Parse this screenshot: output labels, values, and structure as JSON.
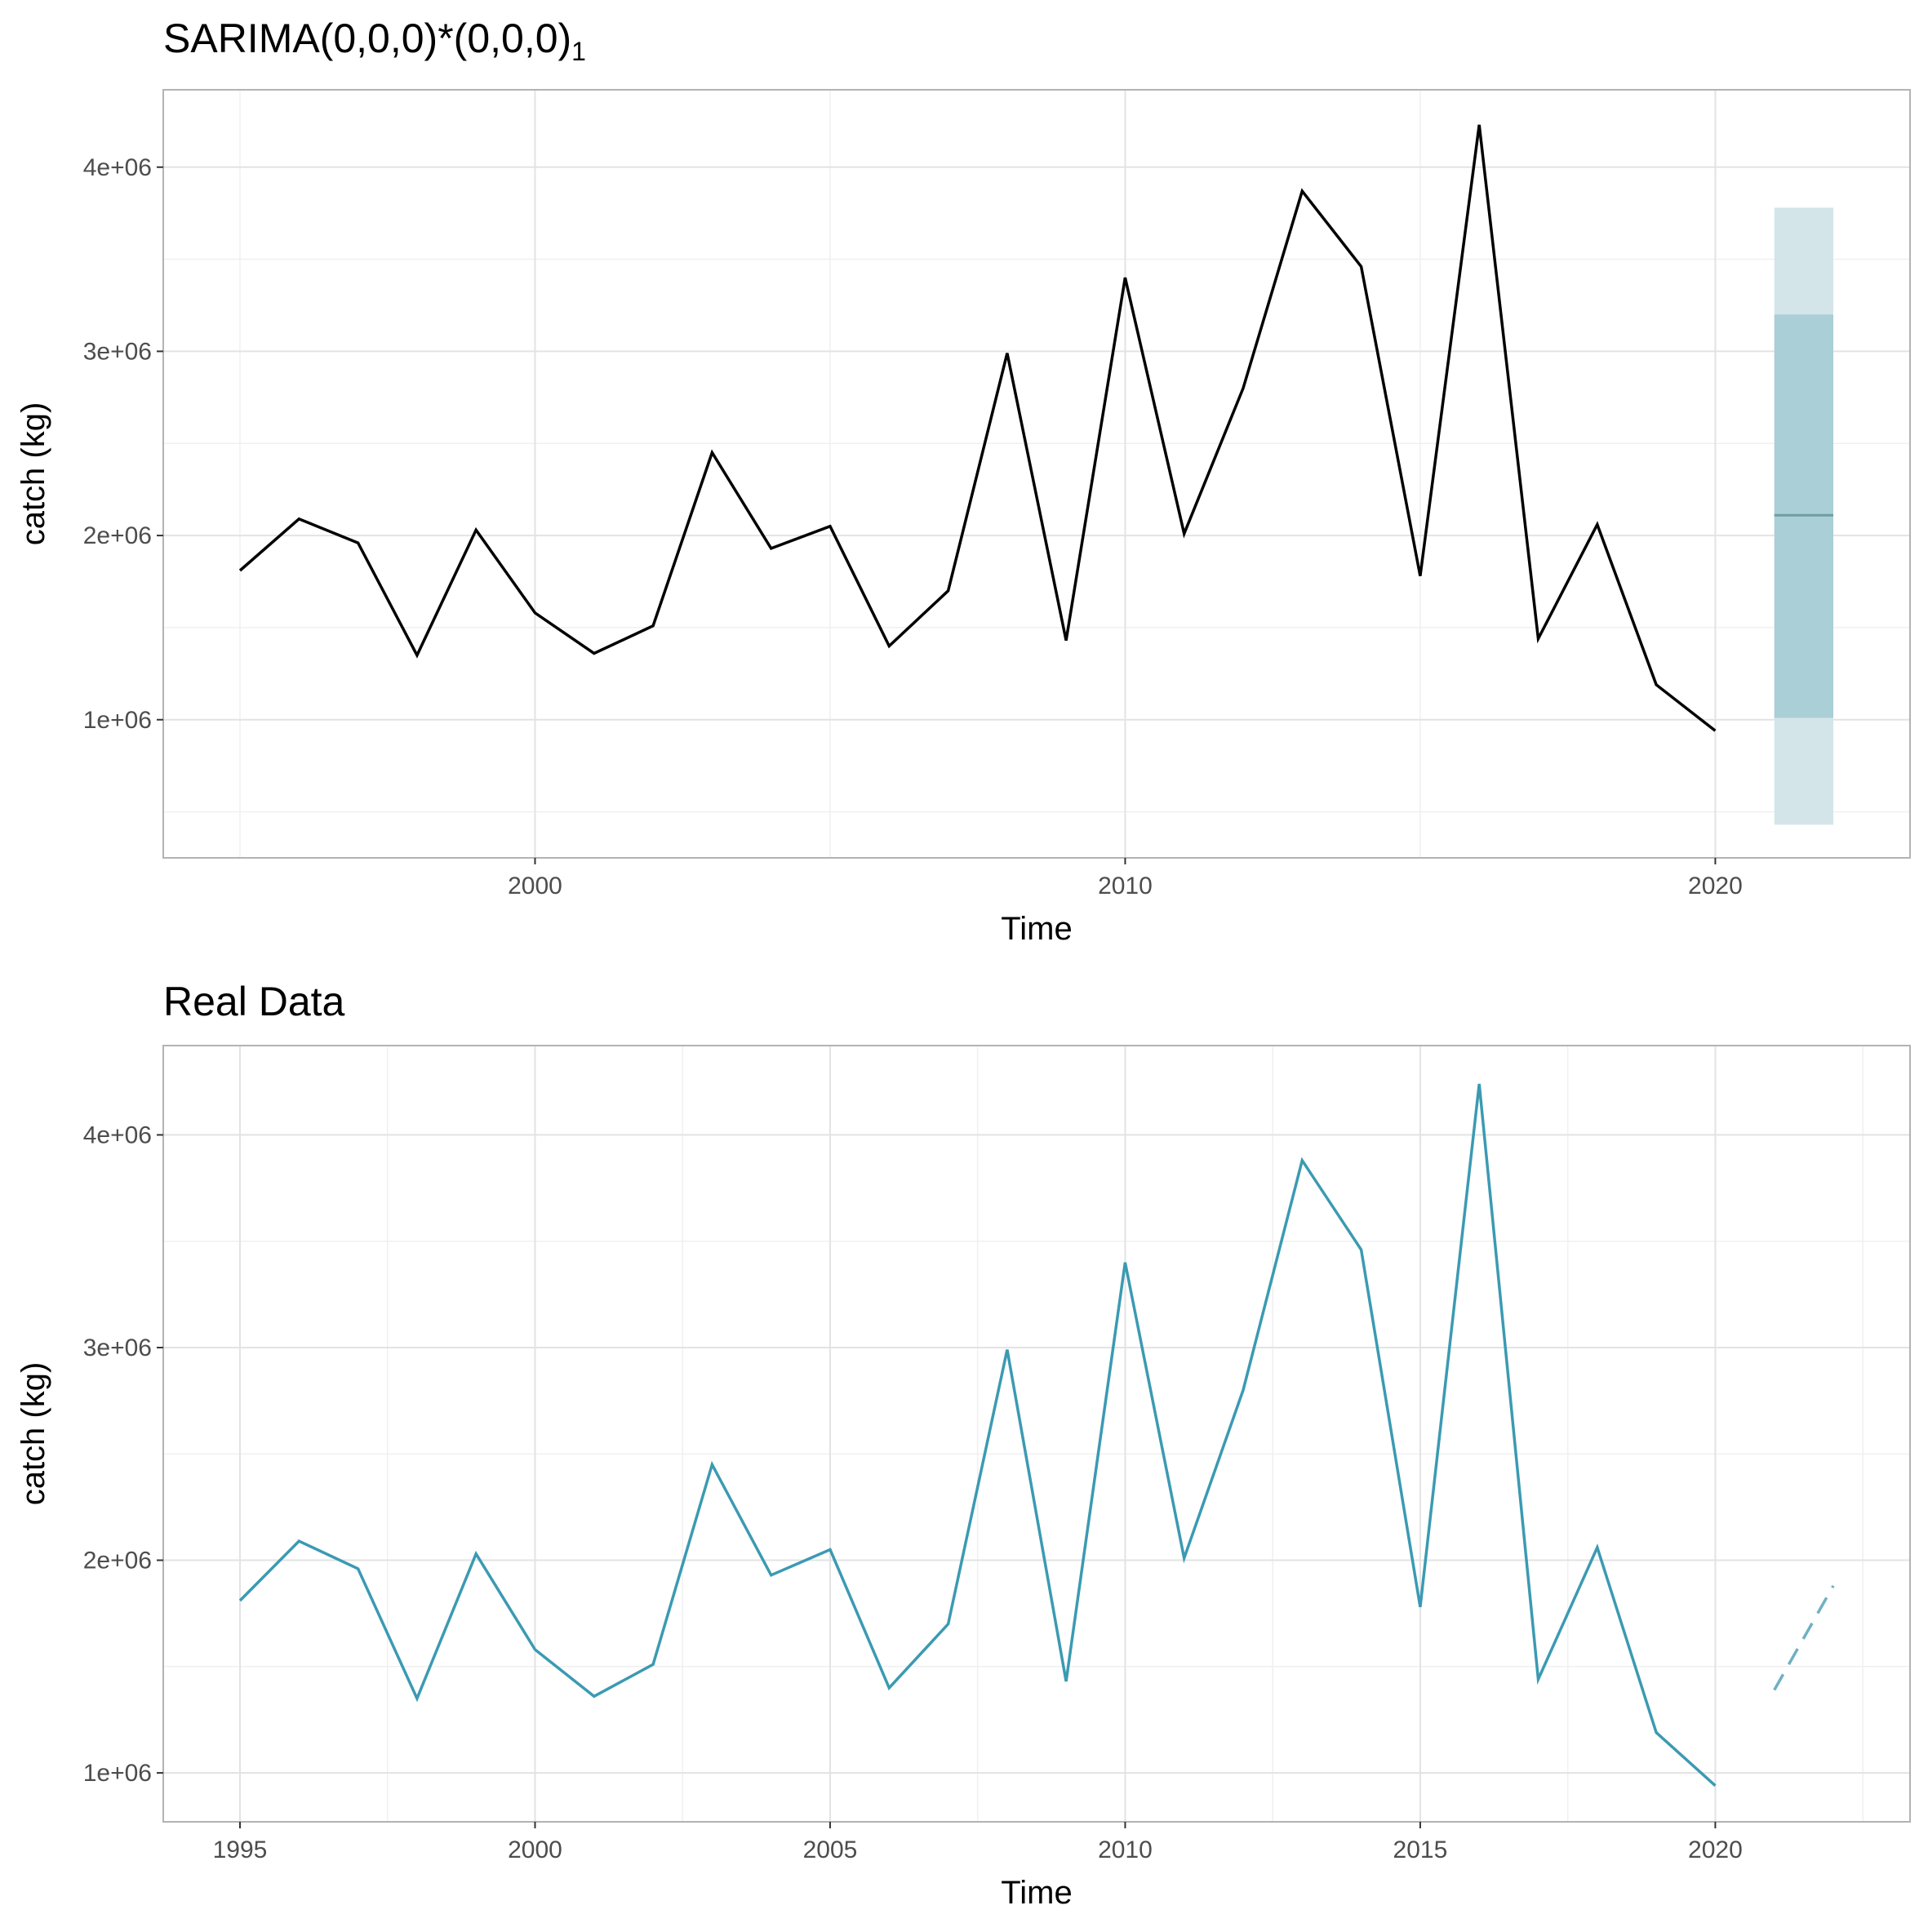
{
  "chart_data": [
    {
      "type": "line",
      "title": "SARIMA(0,0,0)*(0,0,0)",
      "title_subscript": "1",
      "xlabel": "Time",
      "ylabel": "catch (kg)",
      "xlim": [
        1993.7,
        2023.3
      ],
      "ylim": [
        250000,
        4420000
      ],
      "x_ticks": [
        2000,
        2010,
        2020
      ],
      "y_ticks": [
        1000000,
        2000000,
        3000000,
        4000000
      ],
      "y_tick_labels": [
        "1e+06",
        "2e+06",
        "3e+06",
        "4e+06"
      ],
      "grid": true,
      "series": [
        {
          "color": "#000000",
          "x": [
            1995,
            1996,
            1997,
            1998,
            1999,
            2000,
            2001,
            2002,
            2003,
            2004,
            2005,
            2006,
            2007,
            2008,
            2009,
            2010,
            2011,
            2012,
            2013,
            2014,
            2015,
            2016,
            2017,
            2018,
            2019,
            2020
          ],
          "y": [
            1810000,
            2090000,
            1960000,
            1350000,
            2030000,
            1580000,
            1360000,
            1510000,
            2450000,
            1930000,
            2050000,
            1400000,
            1700000,
            2990000,
            1430000,
            3400000,
            2010000,
            2800000,
            3870000,
            3460000,
            1780000,
            4230000,
            1440000,
            2060000,
            1190000,
            940000
          ]
        }
      ],
      "forecast": {
        "x_start": 2021,
        "x_end": 2022,
        "mean": 2110000,
        "lower80": 1010000,
        "upper80": 3200000,
        "lower95": 430000,
        "upper95": 3780000,
        "colors": {
          "band80": "#aacfd6",
          "band95": "#d3e5e8",
          "mean": "#6e9ea3"
        }
      }
    },
    {
      "type": "line",
      "title": "Real Data",
      "xlabel": "Time",
      "ylabel": "catch (kg)",
      "xlim": [
        1993.7,
        2023.3
      ],
      "ylim": [
        770000,
        4420000
      ],
      "x_ticks": [
        1995,
        2000,
        2005,
        2010,
        2015,
        2020
      ],
      "y_ticks": [
        1000000,
        2000000,
        3000000,
        4000000
      ],
      "y_tick_labels": [
        "1e+06",
        "2e+06",
        "3e+06",
        "4e+06"
      ],
      "grid": true,
      "series": [
        {
          "color": "#3b9ab2",
          "x": [
            1995,
            1996,
            1997,
            1998,
            1999,
            2000,
            2001,
            2002,
            2003,
            2004,
            2005,
            2006,
            2007,
            2008,
            2009,
            2010,
            2011,
            2012,
            2013,
            2014,
            2015,
            2016,
            2017,
            2018,
            2019,
            2020
          ],
          "y": [
            1810000,
            2090000,
            1960000,
            1350000,
            2030000,
            1580000,
            1360000,
            1510000,
            2450000,
            1930000,
            2050000,
            1400000,
            1700000,
            2990000,
            1430000,
            3400000,
            2010000,
            2800000,
            3880000,
            3460000,
            1780000,
            4240000,
            1440000,
            2060000,
            1190000,
            940000
          ]
        },
        {
          "color": "#6fb0c4",
          "dashed": true,
          "x": [
            2021,
            2022
          ],
          "y": [
            1390000,
            1880000
          ]
        }
      ]
    }
  ]
}
